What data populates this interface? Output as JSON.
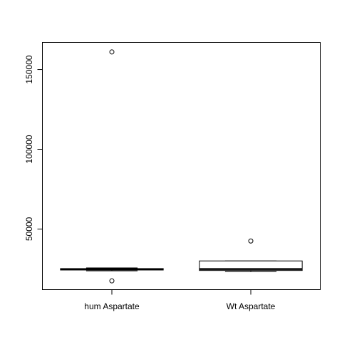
{
  "chart_data": {
    "type": "boxplot",
    "categories": [
      "hum Aspartate",
      "Wt Aspartate"
    ],
    "boxes": [
      {
        "category": "hum Aspartate",
        "whisker_low": 23800,
        "q1": 24300,
        "median": 24800,
        "q3": 25200,
        "whisker_high": 25600,
        "outliers": [
          161000,
          17500
        ]
      },
      {
        "category": "Wt Aspartate",
        "whisker_low": 23300,
        "q1": 24000,
        "median": 24900,
        "q3": 30000,
        "whisker_high": 30000,
        "outliers": [
          42500
        ]
      }
    ],
    "yticks": [
      {
        "value": 50000,
        "label": "50000"
      },
      {
        "value": 100000,
        "label": "100000"
      },
      {
        "value": 150000,
        "label": "150000"
      }
    ],
    "ylim": [
      12000,
      167000
    ],
    "grid": false
  }
}
